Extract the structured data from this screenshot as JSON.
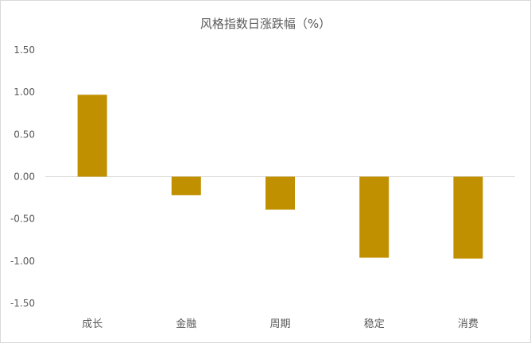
{
  "chart_data": {
    "type": "bar",
    "title": "风格指数日涨跌幅（%）",
    "categories": [
      "成长",
      "金融",
      "周期",
      "稳定",
      "消费"
    ],
    "series": [
      {
        "values": [
          0.97,
          -0.22,
          -0.39,
          -0.96,
          -0.97
        ]
      }
    ],
    "ylim": [
      -1.5,
      1.5
    ],
    "yticks": [
      "1.50",
      "1.00",
      "0.50",
      "0.00",
      "-0.50",
      "-1.00",
      "-1.50"
    ],
    "ytick_values": [
      1.5,
      1.0,
      0.5,
      0.0,
      -0.5,
      -1.0,
      -1.5
    ],
    "bar_color": "#C09000",
    "axis_color": "#d9d9d9",
    "grid": false,
    "legend": "none"
  }
}
